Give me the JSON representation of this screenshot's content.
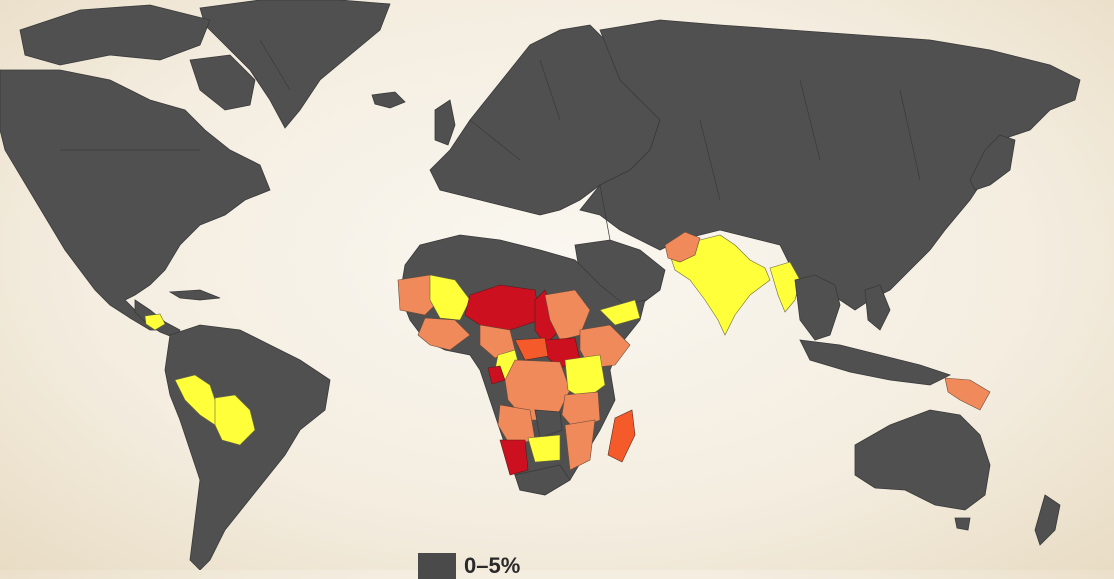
{
  "map": {
    "colors": {
      "ocean": "#f6f1e6",
      "land_default": "#505050",
      "yellow": "#ffff3a",
      "orange": "#f08a5a",
      "red_orange": "#f55a2a",
      "red": "#cc1020"
    }
  },
  "legend": {
    "items": [
      {
        "label": "0–5%",
        "color": "#4a4a4a"
      }
    ]
  }
}
